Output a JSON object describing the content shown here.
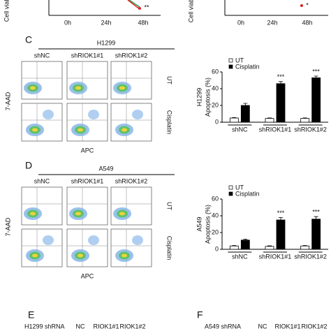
{
  "top": {
    "left_ylabel": "Cell viab",
    "right_ylabel": "Cell viabi",
    "left_xticks": [
      "0h",
      "24h",
      "48h"
    ],
    "right_xticks": [
      "0h",
      "24h",
      "48h"
    ],
    "left_sig": "**",
    "right_sig": "*"
  },
  "panels": [
    {
      "label": "C",
      "title": "H1299",
      "columns": [
        "shNC",
        "shRIOK1#1",
        "shRIOK1#2"
      ],
      "rows": [
        "UT",
        "Cisplatin"
      ],
      "ylabel": "7-AAD",
      "xlabel": "APC"
    },
    {
      "label": "D",
      "title": "A549",
      "columns": [
        "shNC",
        "shRIOK1#1",
        "shRIOK1#2"
      ],
      "rows": [
        "UT",
        "Cisplatin"
      ],
      "ylabel": "7-AAD",
      "xlabel": "APC"
    }
  ],
  "chart_data": [
    {
      "type": "bar",
      "cell_line": "H1299",
      "ylabel": "Apoptosis (%)",
      "categories": [
        "shNC",
        "shRIOK1#1",
        "shRIOK1#2"
      ],
      "ylim": [
        0,
        60
      ],
      "yticks": [
        0,
        20,
        40,
        60
      ],
      "series": [
        {
          "name": "UT",
          "color": "#ffffff",
          "values": [
            5,
            4.5,
            4.5
          ],
          "errors": [
            0.6,
            0.6,
            0.6
          ]
        },
        {
          "name": "Cisplatin",
          "color": "#000000",
          "values": [
            20,
            46,
            53
          ],
          "errors": [
            2.5,
            2.5,
            2
          ]
        }
      ],
      "significance": [
        null,
        "***",
        "***"
      ]
    },
    {
      "type": "bar",
      "cell_line": "A549",
      "ylabel": "Apoptosis (%)",
      "categories": [
        "shNC",
        "shRIOK1#1",
        "shRIOK1#2"
      ],
      "ylim": [
        0,
        60
      ],
      "yticks": [
        0,
        20,
        40,
        60
      ],
      "series": [
        {
          "name": "UT",
          "color": "#ffffff",
          "values": [
            4,
            3.5,
            4
          ],
          "errors": [
            0.6,
            0.6,
            0.6
          ]
        },
        {
          "name": "Cisplatin",
          "color": "#000000",
          "values": [
            11,
            35,
            36
          ],
          "errors": [
            1.2,
            3,
            3
          ]
        }
      ],
      "significance": [
        null,
        "***",
        "***"
      ]
    }
  ],
  "bottom": [
    {
      "label": "E",
      "title": "H1299 shRNA",
      "lanes": [
        "NC",
        "RIOK1#1",
        "RIOK1#2"
      ]
    },
    {
      "label": "F",
      "title": "A549 shRNA",
      "lanes": [
        "NC",
        "RIOK1#1",
        "RIOK1#2"
      ]
    }
  ]
}
